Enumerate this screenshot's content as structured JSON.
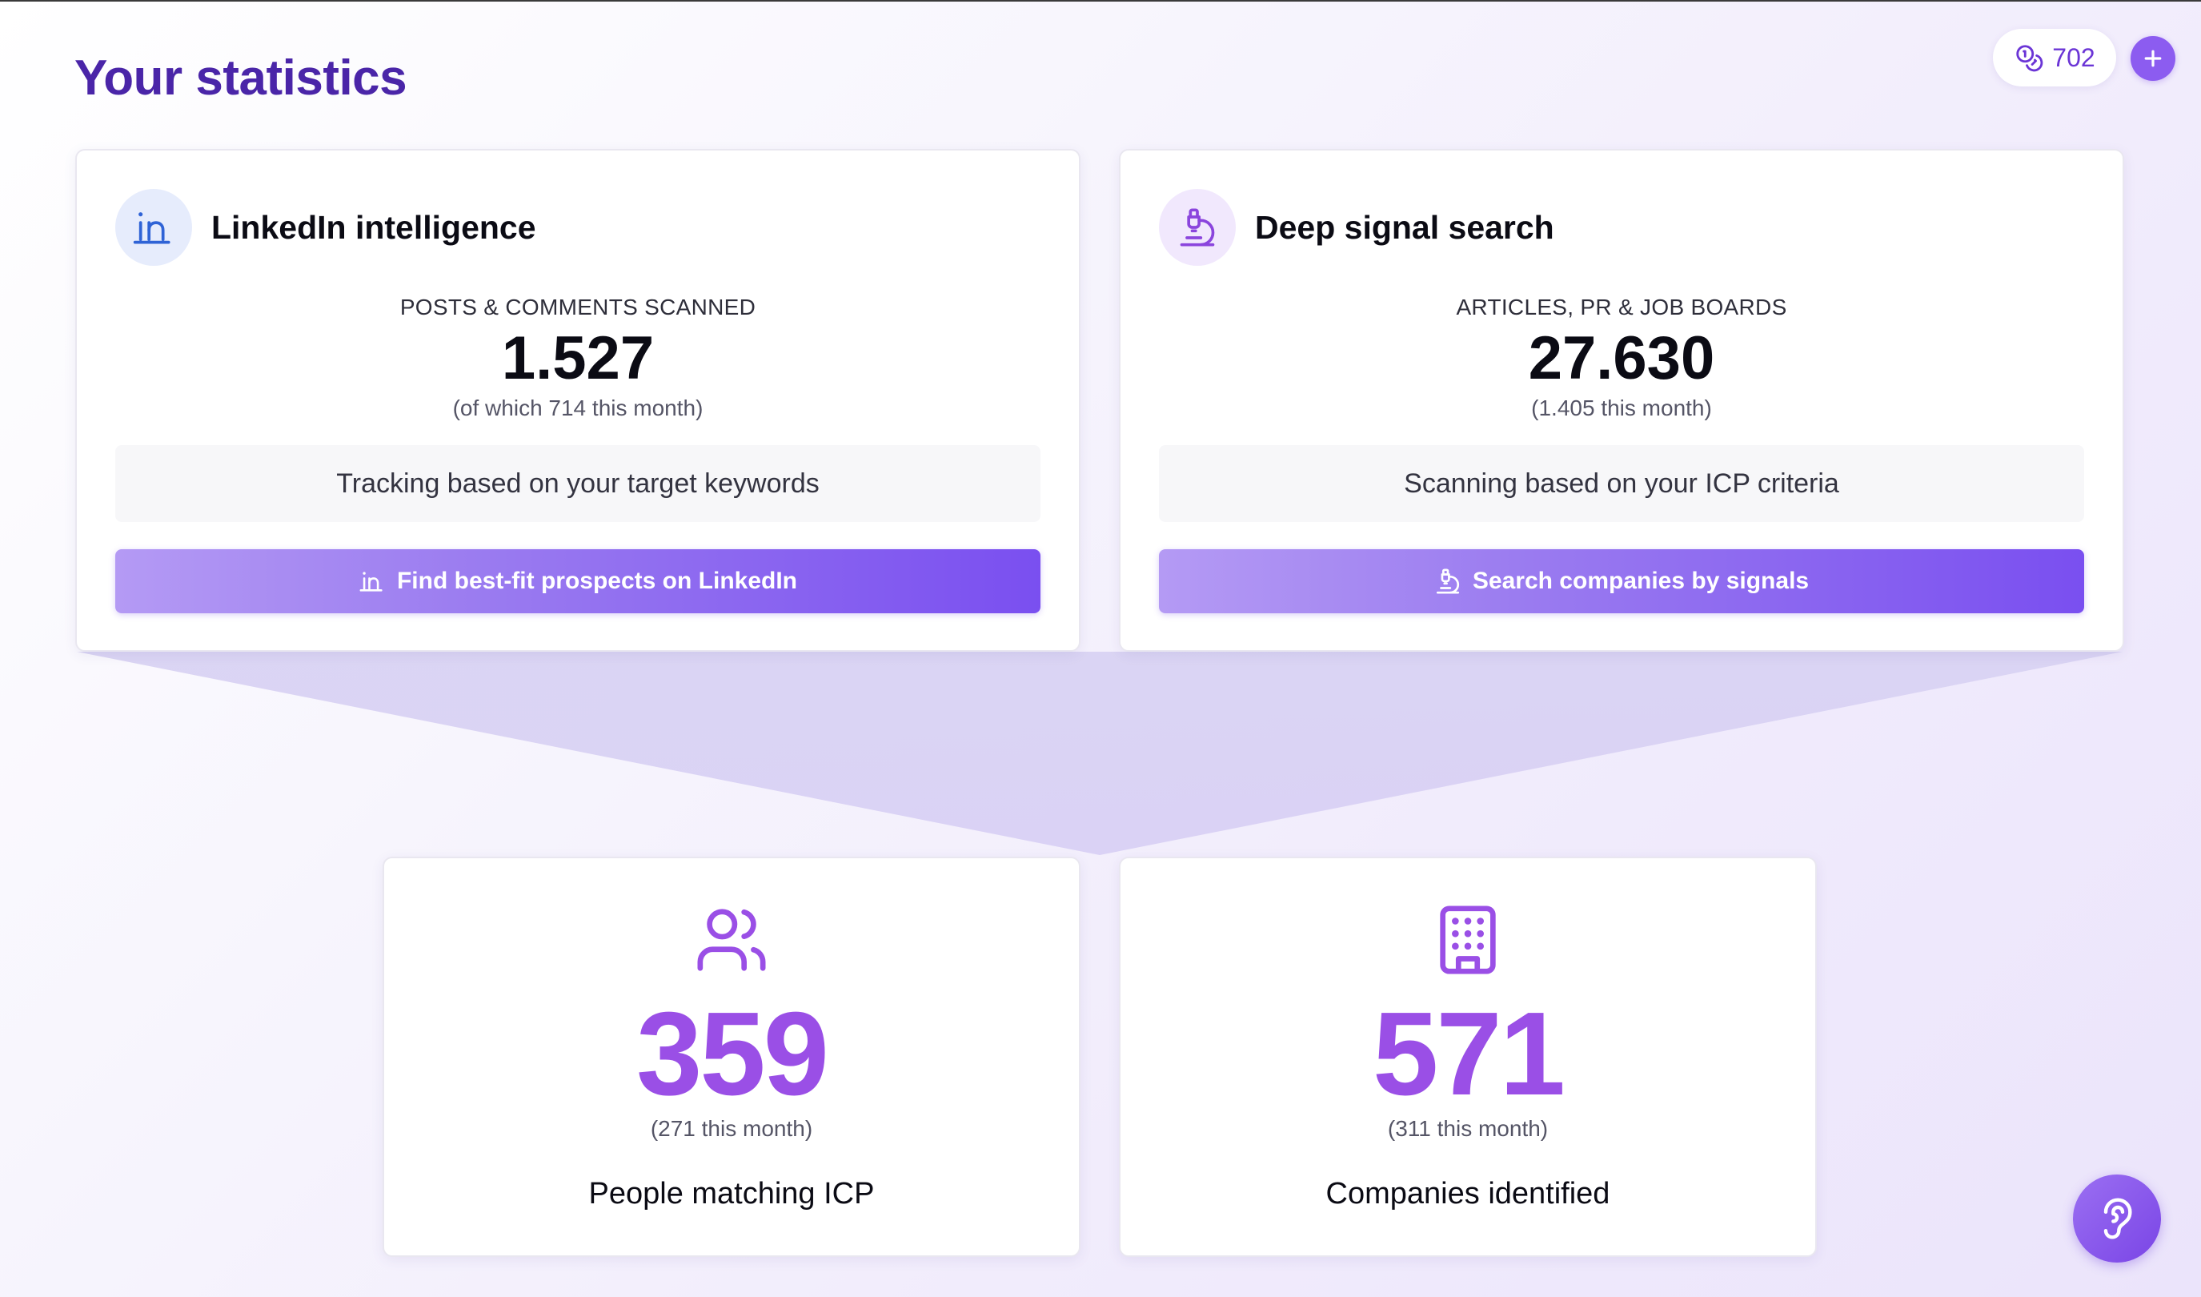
{
  "header": {
    "title": "Your statistics",
    "credits": "702",
    "credits_icon": "coins-icon",
    "add_icon": "plus-icon"
  },
  "sources": [
    {
      "title": "LinkedIn intelligence",
      "icon": "linkedin-icon",
      "stat_label": "POSTS & COMMENTS SCANNED",
      "stat_value": "1.527",
      "stat_sub": "(of which 714 this month)",
      "info": "Tracking based on your target keywords",
      "button_label": "Find best-fit prospects on LinkedIn"
    },
    {
      "title": "Deep signal search",
      "icon": "microscope-icon",
      "stat_label": "ARTICLES, PR & JOB BOARDS",
      "stat_value": "27.630",
      "stat_sub": "(1.405 this month)",
      "info": "Scanning based on your ICP criteria",
      "button_label": "Search companies by signals"
    }
  ],
  "results": [
    {
      "icon": "users-icon",
      "value": "359",
      "sub": "(271 this month)",
      "label": "People matching ICP"
    },
    {
      "icon": "building-icon",
      "value": "571",
      "sub": "(311 this month)",
      "label": "Companies identified"
    }
  ],
  "colors": {
    "title": "#4a25a8",
    "accent": "#9a4fe6",
    "button_start": "#b49af4",
    "button_end": "#7a4ff0"
  },
  "help": {
    "icon": "ear-icon"
  }
}
